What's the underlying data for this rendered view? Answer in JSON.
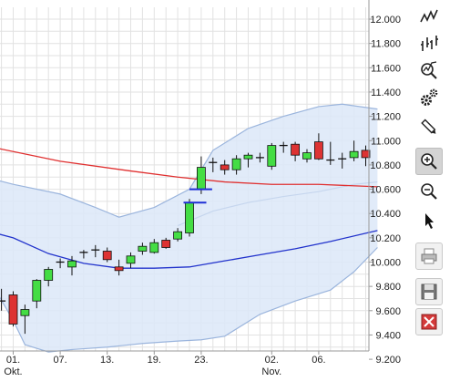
{
  "chart_data": {
    "type": "candlestick",
    "y_ticks": [
      "12.000",
      "11.800",
      "11.600",
      "11.400",
      "11.200",
      "11.000",
      "10.800",
      "10.600",
      "10.400",
      "10.200",
      "10.000",
      "9.800",
      "9.600",
      "9.400",
      "9.200"
    ],
    "ylim": [
      9.05,
      12.1
    ],
    "x_labels": [
      {
        "label": "01.",
        "sub": "Okt.",
        "x": 0
      },
      {
        "label": "07.",
        "x": 4
      },
      {
        "label": "13.",
        "x": 8
      },
      {
        "label": "19.",
        "x": 12
      },
      {
        "label": "23.",
        "x": 16
      },
      {
        "label": "02.",
        "sub": "Nov.",
        "x": 22
      },
      {
        "label": "06.",
        "x": 26
      }
    ],
    "grid": true,
    "candles": [
      {
        "x": -1,
        "o": 9.68,
        "h": 9.78,
        "l": 9.6,
        "c": 9.67
      },
      {
        "x": 0,
        "o": 9.73,
        "h": 9.76,
        "l": 9.47,
        "c": 9.49
      },
      {
        "x": 1,
        "o": 9.56,
        "h": 9.65,
        "l": 9.41,
        "c": 9.61
      },
      {
        "x": 2,
        "o": 9.68,
        "h": 9.86,
        "l": 9.62,
        "c": 9.85
      },
      {
        "x": 3,
        "o": 9.85,
        "h": 9.96,
        "l": 9.8,
        "c": 9.94
      },
      {
        "x": 4,
        "o": 9.99,
        "h": 10.03,
        "l": 9.95,
        "c": 10.0
      },
      {
        "x": 5,
        "o": 9.96,
        "h": 10.05,
        "l": 9.89,
        "c": 10.01
      },
      {
        "x": 6,
        "o": 10.08,
        "h": 10.1,
        "l": 10.03,
        "c": 10.07
      },
      {
        "x": 7,
        "o": 10.1,
        "h": 10.14,
        "l": 10.04,
        "c": 10.1
      },
      {
        "x": 8,
        "o": 10.09,
        "h": 10.12,
        "l": 10.0,
        "c": 10.02
      },
      {
        "x": 9,
        "o": 9.96,
        "h": 10.02,
        "l": 9.89,
        "c": 9.93
      },
      {
        "x": 10,
        "o": 9.99,
        "h": 10.08,
        "l": 9.95,
        "c": 10.05
      },
      {
        "x": 11,
        "o": 10.09,
        "h": 10.16,
        "l": 10.06,
        "c": 10.13
      },
      {
        "x": 12,
        "o": 10.08,
        "h": 10.19,
        "l": 10.07,
        "c": 10.16
      },
      {
        "x": 13,
        "o": 10.18,
        "h": 10.2,
        "l": 10.11,
        "c": 10.12
      },
      {
        "x": 14,
        "o": 10.19,
        "h": 10.28,
        "l": 10.17,
        "c": 10.25
      },
      {
        "x": 15,
        "o": 10.24,
        "h": 10.52,
        "l": 10.21,
        "c": 10.49
      },
      {
        "x": 16,
        "o": 10.6,
        "h": 10.87,
        "l": 10.56,
        "c": 10.78
      },
      {
        "x": 17,
        "o": 10.82,
        "h": 10.86,
        "l": 10.74,
        "c": 10.82
      },
      {
        "x": 18,
        "o": 10.8,
        "h": 10.84,
        "l": 10.72,
        "c": 10.76
      },
      {
        "x": 19,
        "o": 10.76,
        "h": 10.88,
        "l": 10.72,
        "c": 10.85
      },
      {
        "x": 20,
        "o": 10.85,
        "h": 10.9,
        "l": 10.78,
        "c": 10.88
      },
      {
        "x": 21,
        "o": 10.86,
        "h": 10.9,
        "l": 10.82,
        "c": 10.85
      },
      {
        "x": 22,
        "o": 10.79,
        "h": 10.98,
        "l": 10.76,
        "c": 10.96
      },
      {
        "x": 23,
        "o": 10.96,
        "h": 10.99,
        "l": 10.9,
        "c": 10.96
      },
      {
        "x": 24,
        "o": 10.97,
        "h": 10.99,
        "l": 10.83,
        "c": 10.88
      },
      {
        "x": 25,
        "o": 10.85,
        "h": 10.93,
        "l": 10.82,
        "c": 10.9
      },
      {
        "x": 26,
        "o": 10.99,
        "h": 11.06,
        "l": 10.84,
        "c": 10.85
      },
      {
        "x": 27,
        "o": 10.84,
        "h": 10.99,
        "l": 10.8,
        "c": 10.84
      },
      {
        "x": 28,
        "o": 10.85,
        "h": 10.9,
        "l": 10.77,
        "c": 10.84
      },
      {
        "x": 29,
        "o": 10.86,
        "h": 11.0,
        "l": 10.83,
        "c": 10.91
      },
      {
        "x": 30,
        "o": 10.92,
        "h": 10.96,
        "l": 10.79,
        "c": 10.86
      }
    ],
    "x_range": [
      -2,
      31
    ],
    "blue_markers": [
      {
        "x": 15.5,
        "y": 10.49
      },
      {
        "x": 16,
        "y": 10.6
      }
    ],
    "red_ma": [
      [
        -2,
        10.95
      ],
      [
        4,
        10.83
      ],
      [
        10,
        10.75
      ],
      [
        14,
        10.7
      ],
      [
        18,
        10.66
      ],
      [
        22,
        10.64
      ],
      [
        26,
        10.64
      ],
      [
        31,
        10.62
      ]
    ],
    "blue_ma": [
      [
        -2,
        10.25
      ],
      [
        0,
        10.2
      ],
      [
        3,
        10.07
      ],
      [
        6,
        9.99
      ],
      [
        9,
        9.95
      ],
      [
        12,
        9.95
      ],
      [
        15,
        9.96
      ],
      [
        18,
        10.01
      ],
      [
        21,
        10.06
      ],
      [
        24,
        10.11
      ],
      [
        27,
        10.17
      ],
      [
        31,
        10.26
      ]
    ],
    "band_upper": [
      [
        -2,
        10.69
      ],
      [
        0,
        10.64
      ],
      [
        4,
        10.56
      ],
      [
        7,
        10.45
      ],
      [
        9,
        10.37
      ],
      [
        12,
        10.45
      ],
      [
        15,
        10.6
      ],
      [
        17,
        10.92
      ],
      [
        20,
        11.1
      ],
      [
        23,
        11.2
      ],
      [
        26,
        11.28
      ],
      [
        28,
        11.3
      ],
      [
        31,
        11.26
      ]
    ],
    "band_lower": [
      [
        -2,
        9.85
      ],
      [
        0,
        9.52
      ],
      [
        1,
        9.32
      ],
      [
        3,
        9.26
      ],
      [
        5,
        9.28
      ],
      [
        8,
        9.3
      ],
      [
        11,
        9.33
      ],
      [
        14,
        9.35
      ],
      [
        16,
        9.36
      ],
      [
        18,
        9.39
      ],
      [
        21,
        9.57
      ],
      [
        24,
        9.68
      ],
      [
        27,
        9.77
      ],
      [
        29,
        9.92
      ],
      [
        31,
        10.12
      ]
    ],
    "band_mid": [
      [
        14,
        10.3
      ],
      [
        17,
        10.42
      ],
      [
        20,
        10.49
      ],
      [
        23,
        10.54
      ],
      [
        26,
        10.58
      ],
      [
        29,
        10.64
      ],
      [
        31,
        10.66
      ]
    ],
    "colors": {
      "up": "#44dd44",
      "down": "#dd3333",
      "red_ma": "#e03030",
      "blue_ma": "#2233cc",
      "band_fill": "#dce8f8",
      "band_line": "#9bb5dd",
      "marker": "#1f2fd6",
      "grid": "#e2e2e2"
    }
  },
  "toolbar": {
    "items": [
      {
        "name": "line-chart-tool",
        "icon": "line-chart-icon",
        "active": false
      },
      {
        "name": "ohlc-chart-tool",
        "icon": "ohlc-bars-icon",
        "active": false
      },
      {
        "name": "indicator-tool",
        "icon": "magnifier-chart-icon",
        "active": false
      },
      {
        "name": "settings-tool",
        "icon": "gears-icon",
        "active": false
      },
      {
        "name": "draw-line-tool",
        "icon": "pencil-icon",
        "active": false
      },
      {
        "name": "zoom-in-tool",
        "icon": "zoom-in-icon",
        "active": true
      },
      {
        "name": "zoom-out-tool",
        "icon": "zoom-out-icon",
        "active": false
      },
      {
        "name": "pointer-tool",
        "icon": "cursor-icon",
        "active": false
      },
      {
        "name": "print-tool",
        "icon": "printer-icon",
        "active": false
      },
      {
        "name": "save-tool",
        "icon": "floppy-disk-icon",
        "active": false
      },
      {
        "name": "delete-tool",
        "icon": "delete-icon",
        "active": false
      }
    ]
  }
}
